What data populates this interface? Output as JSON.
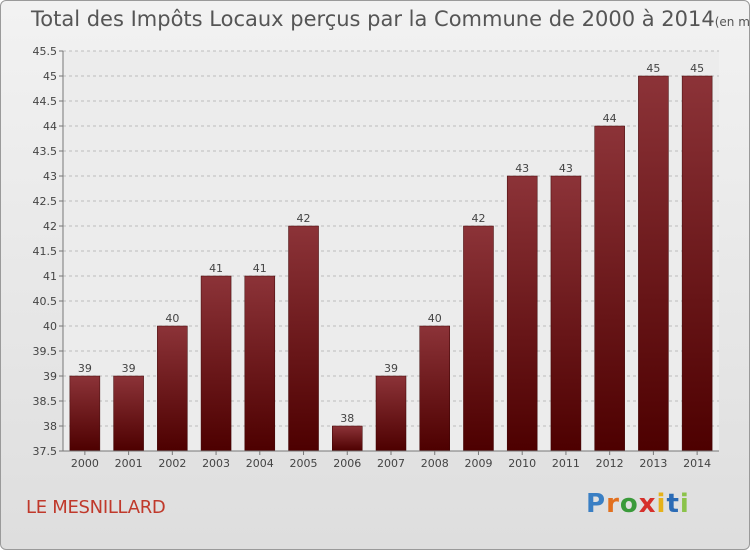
{
  "chart_data": {
    "type": "bar",
    "title": "Total des Impôts Locaux perçus par la Commune de 2000 à 2014",
    "unit_label": "(en milliers d'€)",
    "categories": [
      "2000",
      "2001",
      "2002",
      "2003",
      "2004",
      "2005",
      "2006",
      "2007",
      "2008",
      "2009",
      "2010",
      "2011",
      "2012",
      "2013",
      "2014"
    ],
    "values": [
      39,
      39,
      40,
      41,
      41,
      42,
      38,
      39,
      40,
      42,
      43,
      43,
      44,
      45,
      45
    ],
    "value_labels": [
      "39",
      "39",
      "40",
      "41",
      "41",
      "42",
      "38",
      "39",
      "40",
      "42",
      "43",
      "43",
      "44",
      "45",
      "45"
    ],
    "ylim": [
      37.5,
      45.5
    ],
    "yticks": [
      "37.5",
      "38",
      "38.5",
      "39",
      "39.5",
      "40",
      "40.5",
      "41",
      "41.5",
      "42",
      "42.5",
      "43",
      "43.5",
      "44",
      "44.5",
      "45",
      "45.5"
    ],
    "grid": true,
    "xlabel": "",
    "ylabel": "",
    "bar_color_top": "#8c3338",
    "bar_color_bottom": "#4d0000"
  },
  "footer": {
    "commune": "LE MESNILLARD",
    "logo_letters": [
      "P",
      "r",
      "o",
      "x",
      "i",
      "t",
      "i"
    ],
    "logo_colors": [
      "#3a7fc4",
      "#e2701f",
      "#3a9a3a",
      "#d6302b",
      "#e6b21a",
      "#2b6bb5",
      "#8bc34a"
    ]
  }
}
